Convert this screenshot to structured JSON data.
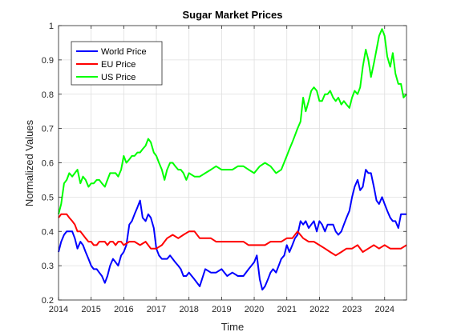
{
  "chart_data": {
    "type": "line",
    "title": "Sugar Market Prices",
    "xlabel": "Time",
    "ylabel": "Normalized Values",
    "xlim": [
      2014,
      2024.67
    ],
    "ylim": [
      0.2,
      1.0
    ],
    "xticks": [
      2014,
      2015,
      2016,
      2017,
      2018,
      2019,
      2020,
      2021,
      2022,
      2023,
      2024
    ],
    "yticks": [
      0.2,
      0.3,
      0.4,
      0.5,
      0.6,
      0.7,
      0.8,
      0.9,
      1.0
    ],
    "ytick_labels": [
      "0.2",
      "0.3",
      "0.4",
      "0.5",
      "0.6",
      "0.7",
      "0.8",
      "0.9",
      "1"
    ],
    "grid": true,
    "legend_position": "top-left",
    "series": [
      {
        "name": "World Price",
        "color": "#0000ff",
        "x": [
          2014.0,
          2014.08,
          2014.17,
          2014.25,
          2014.33,
          2014.42,
          2014.5,
          2014.58,
          2014.67,
          2014.75,
          2014.83,
          2014.92,
          2015.0,
          2015.08,
          2015.17,
          2015.25,
          2015.33,
          2015.42,
          2015.5,
          2015.58,
          2015.67,
          2015.75,
          2015.83,
          2015.92,
          2016.0,
          2016.08,
          2016.17,
          2016.25,
          2016.33,
          2016.42,
          2016.5,
          2016.58,
          2016.67,
          2016.75,
          2016.83,
          2016.92,
          2017.0,
          2017.08,
          2017.17,
          2017.25,
          2017.33,
          2017.42,
          2017.5,
          2017.58,
          2017.67,
          2017.75,
          2017.83,
          2017.92,
          2018.0,
          2018.17,
          2018.33,
          2018.5,
          2018.67,
          2018.83,
          2019.0,
          2019.17,
          2019.33,
          2019.5,
          2019.67,
          2019.83,
          2020.0,
          2020.08,
          2020.17,
          2020.25,
          2020.33,
          2020.42,
          2020.5,
          2020.58,
          2020.67,
          2020.75,
          2020.83,
          2020.92,
          2021.0,
          2021.08,
          2021.17,
          2021.25,
          2021.33,
          2021.42,
          2021.5,
          2021.58,
          2021.67,
          2021.75,
          2021.83,
          2021.92,
          2022.0,
          2022.08,
          2022.17,
          2022.25,
          2022.33,
          2022.42,
          2022.5,
          2022.58,
          2022.67,
          2022.75,
          2022.83,
          2022.92,
          2023.0,
          2023.08,
          2023.17,
          2023.25,
          2023.33,
          2023.42,
          2023.5,
          2023.58,
          2023.67,
          2023.75,
          2023.83,
          2023.92,
          2024.0,
          2024.08,
          2024.17,
          2024.25,
          2024.33,
          2024.42,
          2024.5,
          2024.58,
          2024.67
        ],
        "y": [
          0.34,
          0.37,
          0.39,
          0.4,
          0.4,
          0.4,
          0.38,
          0.35,
          0.37,
          0.36,
          0.34,
          0.32,
          0.3,
          0.29,
          0.29,
          0.28,
          0.27,
          0.25,
          0.27,
          0.3,
          0.32,
          0.31,
          0.3,
          0.33,
          0.34,
          0.36,
          0.42,
          0.43,
          0.45,
          0.47,
          0.49,
          0.44,
          0.43,
          0.45,
          0.44,
          0.41,
          0.35,
          0.33,
          0.32,
          0.32,
          0.32,
          0.33,
          0.32,
          0.31,
          0.3,
          0.29,
          0.27,
          0.27,
          0.28,
          0.26,
          0.24,
          0.29,
          0.28,
          0.28,
          0.29,
          0.27,
          0.28,
          0.27,
          0.27,
          0.29,
          0.31,
          0.33,
          0.26,
          0.23,
          0.24,
          0.26,
          0.28,
          0.29,
          0.28,
          0.3,
          0.32,
          0.33,
          0.36,
          0.34,
          0.36,
          0.38,
          0.39,
          0.43,
          0.42,
          0.43,
          0.41,
          0.42,
          0.43,
          0.4,
          0.43,
          0.42,
          0.4,
          0.42,
          0.42,
          0.42,
          0.4,
          0.39,
          0.4,
          0.42,
          0.44,
          0.46,
          0.5,
          0.53,
          0.55,
          0.52,
          0.53,
          0.58,
          0.57,
          0.57,
          0.53,
          0.49,
          0.48,
          0.5,
          0.48,
          0.46,
          0.44,
          0.43,
          0.43,
          0.41,
          0.45,
          0.45,
          0.45
        ],
        "label_note": ""
      },
      {
        "name": "EU Price",
        "color": "#ff0000",
        "x": [
          2014.0,
          2014.08,
          2014.17,
          2014.25,
          2014.33,
          2014.42,
          2014.5,
          2014.58,
          2014.67,
          2014.75,
          2014.83,
          2014.92,
          2015.0,
          2015.08,
          2015.17,
          2015.25,
          2015.33,
          2015.42,
          2015.5,
          2015.58,
          2015.67,
          2015.75,
          2015.83,
          2015.92,
          2016.0,
          2016.17,
          2016.33,
          2016.5,
          2016.67,
          2016.83,
          2017.0,
          2017.17,
          2017.33,
          2017.5,
          2017.67,
          2017.83,
          2018.0,
          2018.17,
          2018.33,
          2018.5,
          2018.67,
          2018.83,
          2019.0,
          2019.17,
          2019.33,
          2019.5,
          2019.67,
          2019.83,
          2020.0,
          2020.17,
          2020.33,
          2020.5,
          2020.67,
          2020.83,
          2021.0,
          2021.17,
          2021.33,
          2021.5,
          2021.67,
          2021.83,
          2022.0,
          2022.17,
          2022.33,
          2022.5,
          2022.67,
          2022.83,
          2023.0,
          2023.17,
          2023.33,
          2023.5,
          2023.67,
          2023.83,
          2024.0,
          2024.17,
          2024.33,
          2024.5,
          2024.67
        ],
        "y": [
          0.44,
          0.45,
          0.45,
          0.45,
          0.44,
          0.43,
          0.42,
          0.4,
          0.4,
          0.39,
          0.38,
          0.37,
          0.37,
          0.36,
          0.36,
          0.37,
          0.37,
          0.37,
          0.36,
          0.37,
          0.37,
          0.36,
          0.37,
          0.37,
          0.36,
          0.37,
          0.37,
          0.36,
          0.37,
          0.35,
          0.35,
          0.36,
          0.38,
          0.39,
          0.38,
          0.39,
          0.4,
          0.4,
          0.38,
          0.38,
          0.38,
          0.37,
          0.37,
          0.37,
          0.37,
          0.37,
          0.37,
          0.36,
          0.36,
          0.36,
          0.36,
          0.37,
          0.37,
          0.37,
          0.38,
          0.38,
          0.4,
          0.38,
          0.37,
          0.37,
          0.36,
          0.35,
          0.34,
          0.33,
          0.34,
          0.35,
          0.35,
          0.36,
          0.34,
          0.35,
          0.36,
          0.35,
          0.36,
          0.35,
          0.35,
          0.35,
          0.36
        ]
      },
      {
        "name": "US Price",
        "color": "#00ff00",
        "x": [
          2014.0,
          2014.08,
          2014.17,
          2014.25,
          2014.33,
          2014.42,
          2014.5,
          2014.58,
          2014.67,
          2014.75,
          2014.83,
          2014.92,
          2015.0,
          2015.08,
          2015.17,
          2015.25,
          2015.33,
          2015.42,
          2015.5,
          2015.58,
          2015.67,
          2015.75,
          2015.83,
          2015.92,
          2016.0,
          2016.08,
          2016.17,
          2016.25,
          2016.33,
          2016.42,
          2016.5,
          2016.58,
          2016.67,
          2016.75,
          2016.83,
          2016.92,
          2017.0,
          2017.08,
          2017.17,
          2017.25,
          2017.33,
          2017.42,
          2017.5,
          2017.58,
          2017.67,
          2017.75,
          2017.83,
          2017.92,
          2018.0,
          2018.17,
          2018.33,
          2018.5,
          2018.67,
          2018.83,
          2019.0,
          2019.17,
          2019.33,
          2019.5,
          2019.67,
          2019.83,
          2020.0,
          2020.17,
          2020.33,
          2020.5,
          2020.67,
          2020.83,
          2021.0,
          2021.08,
          2021.17,
          2021.25,
          2021.33,
          2021.42,
          2021.5,
          2021.58,
          2021.67,
          2021.75,
          2021.83,
          2021.92,
          2022.0,
          2022.08,
          2022.17,
          2022.25,
          2022.33,
          2022.42,
          2022.5,
          2022.58,
          2022.67,
          2022.75,
          2022.83,
          2022.92,
          2023.0,
          2023.08,
          2023.17,
          2023.25,
          2023.33,
          2023.42,
          2023.5,
          2023.58,
          2023.67,
          2023.75,
          2023.83,
          2023.92,
          2024.0,
          2024.08,
          2024.17,
          2024.25,
          2024.33,
          2024.42,
          2024.5,
          2024.58,
          2024.67
        ],
        "y": [
          0.45,
          0.48,
          0.54,
          0.55,
          0.57,
          0.56,
          0.57,
          0.58,
          0.54,
          0.56,
          0.55,
          0.53,
          0.54,
          0.54,
          0.55,
          0.55,
          0.54,
          0.53,
          0.55,
          0.57,
          0.57,
          0.57,
          0.56,
          0.58,
          0.62,
          0.6,
          0.61,
          0.62,
          0.62,
          0.63,
          0.63,
          0.64,
          0.65,
          0.67,
          0.66,
          0.63,
          0.62,
          0.6,
          0.58,
          0.55,
          0.58,
          0.6,
          0.6,
          0.59,
          0.58,
          0.58,
          0.57,
          0.55,
          0.57,
          0.56,
          0.56,
          0.57,
          0.58,
          0.59,
          0.58,
          0.58,
          0.58,
          0.59,
          0.59,
          0.58,
          0.57,
          0.59,
          0.6,
          0.59,
          0.57,
          0.58,
          0.62,
          0.64,
          0.66,
          0.68,
          0.7,
          0.72,
          0.79,
          0.75,
          0.78,
          0.81,
          0.82,
          0.81,
          0.78,
          0.78,
          0.8,
          0.8,
          0.81,
          0.79,
          0.78,
          0.79,
          0.77,
          0.78,
          0.77,
          0.76,
          0.79,
          0.81,
          0.8,
          0.82,
          0.88,
          0.93,
          0.9,
          0.85,
          0.89,
          0.93,
          0.97,
          0.99,
          0.97,
          0.91,
          0.88,
          0.92,
          0.86,
          0.83,
          0.83,
          0.79,
          0.8
        ]
      }
    ]
  }
}
